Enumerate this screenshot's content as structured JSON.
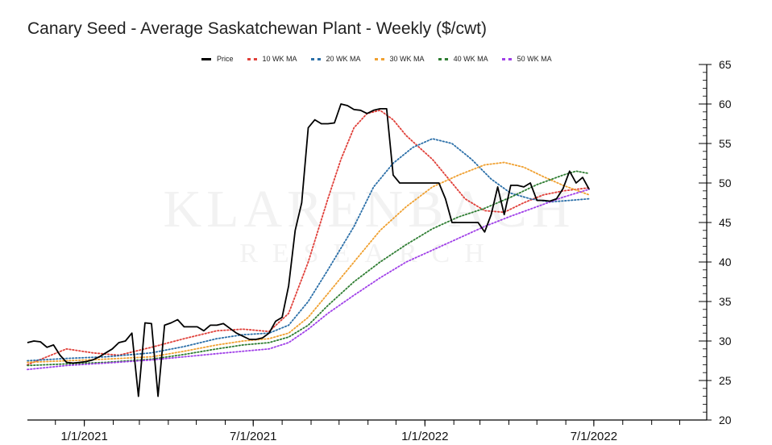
{
  "chart_data": {
    "type": "line",
    "title": "Canary Seed - Average Saskatchewan Plant - Weekly ($/cwt)",
    "watermark": [
      "KLARENBACH",
      "RESEARCH"
    ],
    "y_axis_position": "right",
    "ylim": [
      20,
      65
    ],
    "yticks": [
      20,
      25,
      30,
      35,
      40,
      45,
      50,
      55,
      60,
      65
    ],
    "xlim": [
      "2020-11-01",
      "2022-10-30"
    ],
    "xtick_labels": [
      {
        "label": "1/1/2021",
        "x": "2021-01-01"
      },
      {
        "label": "7/1/2021",
        "x": "2021-07-01"
      },
      {
        "label": "1/1/2022",
        "x": "2022-01-01"
      },
      {
        "label": "7/1/2022",
        "x": "2022-07-01"
      }
    ],
    "grid": false,
    "legend_position": "top",
    "series": [
      {
        "name": "Price",
        "color": "#000000",
        "style": "solid",
        "points": [
          [
            "2020-11-01",
            29.8
          ],
          [
            "2020-11-08",
            30.0
          ],
          [
            "2020-11-15",
            29.9
          ],
          [
            "2020-11-22",
            29.2
          ],
          [
            "2020-11-29",
            29.5
          ],
          [
            "2020-12-06",
            28.2
          ],
          [
            "2020-12-13",
            27.3
          ],
          [
            "2020-12-20",
            27.2
          ],
          [
            "2020-12-27",
            27.3
          ],
          [
            "2021-01-03",
            27.4
          ],
          [
            "2021-01-10",
            27.6
          ],
          [
            "2021-01-17",
            28.0
          ],
          [
            "2021-01-24",
            28.5
          ],
          [
            "2021-01-31",
            29.0
          ],
          [
            "2021-02-07",
            29.8
          ],
          [
            "2021-02-14",
            30.0
          ],
          [
            "2021-02-21",
            31.0
          ],
          [
            "2021-02-28",
            23.0
          ],
          [
            "2021-03-07",
            32.3
          ],
          [
            "2021-03-14",
            32.2
          ],
          [
            "2021-03-21",
            23.0
          ],
          [
            "2021-03-28",
            32.0
          ],
          [
            "2021-04-04",
            32.3
          ],
          [
            "2021-04-11",
            32.7
          ],
          [
            "2021-04-18",
            31.8
          ],
          [
            "2021-04-25",
            31.8
          ],
          [
            "2021-05-02",
            31.8
          ],
          [
            "2021-05-09",
            31.3
          ],
          [
            "2021-05-16",
            32.0
          ],
          [
            "2021-05-23",
            32.0
          ],
          [
            "2021-05-30",
            32.2
          ],
          [
            "2021-06-06",
            31.6
          ],
          [
            "2021-06-13",
            31.0
          ],
          [
            "2021-06-20",
            30.6
          ],
          [
            "2021-06-27",
            30.2
          ],
          [
            "2021-07-04",
            30.2
          ],
          [
            "2021-07-11",
            30.4
          ],
          [
            "2021-07-18",
            31.0
          ],
          [
            "2021-07-25",
            32.5
          ],
          [
            "2021-08-01",
            33.0
          ],
          [
            "2021-08-08",
            37.0
          ],
          [
            "2021-08-15",
            44.0
          ],
          [
            "2021-08-22",
            47.5
          ],
          [
            "2021-08-29",
            57.0
          ],
          [
            "2021-09-05",
            58.0
          ],
          [
            "2021-09-12",
            57.5
          ],
          [
            "2021-09-19",
            57.5
          ],
          [
            "2021-09-26",
            57.6
          ],
          [
            "2021-10-03",
            60.0
          ],
          [
            "2021-10-10",
            59.8
          ],
          [
            "2021-10-17",
            59.3
          ],
          [
            "2021-10-24",
            59.2
          ],
          [
            "2021-10-31",
            58.8
          ],
          [
            "2021-11-07",
            59.2
          ],
          [
            "2021-11-14",
            59.4
          ],
          [
            "2021-11-21",
            59.4
          ],
          [
            "2021-11-28",
            51.0
          ],
          [
            "2021-12-05",
            50.0
          ],
          [
            "2021-12-12",
            50.0
          ],
          [
            "2021-12-19",
            50.0
          ],
          [
            "2021-12-26",
            50.0
          ],
          [
            "2022-01-02",
            50.0
          ],
          [
            "2022-01-09",
            50.0
          ],
          [
            "2022-01-16",
            50.0
          ],
          [
            "2022-01-23",
            48.0
          ],
          [
            "2022-01-30",
            45.0
          ],
          [
            "2022-02-06",
            45.0
          ],
          [
            "2022-02-13",
            45.0
          ],
          [
            "2022-02-20",
            45.0
          ],
          [
            "2022-02-27",
            45.0
          ],
          [
            "2022-03-06",
            43.8
          ],
          [
            "2022-03-13",
            46.0
          ],
          [
            "2022-03-20",
            49.5
          ],
          [
            "2022-03-27",
            46.0
          ],
          [
            "2022-04-03",
            49.7
          ],
          [
            "2022-04-10",
            49.7
          ],
          [
            "2022-04-17",
            49.5
          ],
          [
            "2022-04-24",
            50.0
          ],
          [
            "2022-05-01",
            47.8
          ],
          [
            "2022-05-08",
            47.8
          ],
          [
            "2022-05-15",
            47.7
          ],
          [
            "2022-05-22",
            48.0
          ],
          [
            "2022-05-29",
            49.3
          ],
          [
            "2022-06-05",
            51.5
          ],
          [
            "2022-06-12",
            50.0
          ],
          [
            "2022-06-19",
            50.7
          ],
          [
            "2022-06-26",
            49.2
          ]
        ]
      },
      {
        "name": "10 WK MA",
        "color": "#e0403a",
        "style": "dotted",
        "points": [
          [
            "2020-11-01",
            27.0
          ],
          [
            "2020-12-13",
            29.0
          ],
          [
            "2021-01-10",
            28.5
          ],
          [
            "2021-02-07",
            28.2
          ],
          [
            "2021-03-14",
            29.2
          ],
          [
            "2021-04-18",
            30.3
          ],
          [
            "2021-05-23",
            31.3
          ],
          [
            "2021-06-20",
            31.5
          ],
          [
            "2021-07-18",
            31.2
          ],
          [
            "2021-08-08",
            33.5
          ],
          [
            "2021-08-29",
            40.0
          ],
          [
            "2021-09-19",
            48.0
          ],
          [
            "2021-10-03",
            53.0
          ],
          [
            "2021-10-17",
            57.0
          ],
          [
            "2021-10-31",
            58.8
          ],
          [
            "2021-11-14",
            59.2
          ],
          [
            "2021-11-28",
            58.0
          ],
          [
            "2021-12-12",
            56.0
          ],
          [
            "2021-12-26",
            54.5
          ],
          [
            "2022-01-09",
            53.0
          ],
          [
            "2022-01-23",
            51.0
          ],
          [
            "2022-02-13",
            48.0
          ],
          [
            "2022-03-06",
            46.5
          ],
          [
            "2022-03-27",
            46.3
          ],
          [
            "2022-04-17",
            47.5
          ],
          [
            "2022-05-08",
            48.5
          ],
          [
            "2022-05-29",
            49.0
          ],
          [
            "2022-06-19",
            49.3
          ],
          [
            "2022-06-26",
            49.4
          ]
        ]
      },
      {
        "name": "20 WK MA",
        "color": "#2b6fa8",
        "style": "dotted",
        "points": [
          [
            "2020-11-01",
            27.5
          ],
          [
            "2020-12-13",
            27.8
          ],
          [
            "2021-01-24",
            28.0
          ],
          [
            "2021-03-14",
            28.5
          ],
          [
            "2021-04-18",
            29.3
          ],
          [
            "2021-05-23",
            30.3
          ],
          [
            "2021-06-20",
            30.8
          ],
          [
            "2021-07-18",
            31.0
          ],
          [
            "2021-08-08",
            32.0
          ],
          [
            "2021-08-29",
            35.0
          ],
          [
            "2021-09-19",
            39.0
          ],
          [
            "2021-10-17",
            44.5
          ],
          [
            "2021-11-07",
            49.5
          ],
          [
            "2021-11-28",
            52.5
          ],
          [
            "2021-12-19",
            54.5
          ],
          [
            "2022-01-09",
            55.6
          ],
          [
            "2022-01-30",
            55.0
          ],
          [
            "2022-02-20",
            53.0
          ],
          [
            "2022-03-13",
            50.5
          ],
          [
            "2022-04-03",
            48.7
          ],
          [
            "2022-04-24",
            48.0
          ],
          [
            "2022-05-15",
            47.6
          ],
          [
            "2022-06-05",
            47.8
          ],
          [
            "2022-06-26",
            48.0
          ]
        ]
      },
      {
        "name": "30 WK MA",
        "color": "#f0a030",
        "style": "dotted",
        "points": [
          [
            "2020-11-01",
            27.3
          ],
          [
            "2020-12-13",
            27.5
          ],
          [
            "2021-01-24",
            27.7
          ],
          [
            "2021-03-14",
            28.0
          ],
          [
            "2021-04-18",
            28.7
          ],
          [
            "2021-05-23",
            29.5
          ],
          [
            "2021-06-20",
            30.0
          ],
          [
            "2021-07-18",
            30.3
          ],
          [
            "2021-08-08",
            31.0
          ],
          [
            "2021-08-29",
            33.0
          ],
          [
            "2021-09-19",
            36.0
          ],
          [
            "2021-10-17",
            40.0
          ],
          [
            "2021-11-14",
            44.0
          ],
          [
            "2021-12-12",
            47.0
          ],
          [
            "2022-01-09",
            49.5
          ],
          [
            "2022-02-06",
            51.0
          ],
          [
            "2022-03-06",
            52.3
          ],
          [
            "2022-03-27",
            52.6
          ],
          [
            "2022-04-17",
            52.0
          ],
          [
            "2022-05-08",
            50.8
          ],
          [
            "2022-05-29",
            49.7
          ],
          [
            "2022-06-19",
            48.8
          ],
          [
            "2022-06-26",
            48.5
          ]
        ]
      },
      {
        "name": "40 WK MA",
        "color": "#2e7d32",
        "style": "dotted",
        "points": [
          [
            "2020-11-01",
            26.9
          ],
          [
            "2020-12-13",
            27.1
          ],
          [
            "2021-01-24",
            27.3
          ],
          [
            "2021-03-14",
            27.7
          ],
          [
            "2021-04-18",
            28.3
          ],
          [
            "2021-05-23",
            29.0
          ],
          [
            "2021-06-20",
            29.5
          ],
          [
            "2021-07-18",
            29.8
          ],
          [
            "2021-08-08",
            30.5
          ],
          [
            "2021-08-29",
            32.0
          ],
          [
            "2021-09-19",
            34.5
          ],
          [
            "2021-10-17",
            37.5
          ],
          [
            "2021-11-14",
            40.0
          ],
          [
            "2021-12-12",
            42.2
          ],
          [
            "2022-01-09",
            44.2
          ],
          [
            "2022-02-06",
            45.7
          ],
          [
            "2022-03-06",
            46.8
          ],
          [
            "2022-04-03",
            48.2
          ],
          [
            "2022-05-01",
            49.8
          ],
          [
            "2022-05-29",
            51.0
          ],
          [
            "2022-06-12",
            51.5
          ],
          [
            "2022-06-26",
            51.2
          ]
        ]
      },
      {
        "name": "50 WK MA",
        "color": "#a040e8",
        "style": "dotted",
        "points": [
          [
            "2020-11-01",
            26.4
          ],
          [
            "2020-12-13",
            26.9
          ],
          [
            "2021-01-24",
            27.2
          ],
          [
            "2021-03-14",
            27.6
          ],
          [
            "2021-04-18",
            28.0
          ],
          [
            "2021-05-23",
            28.4
          ],
          [
            "2021-06-20",
            28.7
          ],
          [
            "2021-07-18",
            29.0
          ],
          [
            "2021-08-08",
            29.8
          ],
          [
            "2021-08-29",
            31.5
          ],
          [
            "2021-09-19",
            33.5
          ],
          [
            "2021-10-17",
            35.8
          ],
          [
            "2021-11-14",
            38.0
          ],
          [
            "2021-12-12",
            40.0
          ],
          [
            "2022-01-09",
            41.5
          ],
          [
            "2022-02-06",
            43.0
          ],
          [
            "2022-03-06",
            44.5
          ],
          [
            "2022-04-03",
            45.8
          ],
          [
            "2022-05-01",
            47.0
          ],
          [
            "2022-05-29",
            48.2
          ],
          [
            "2022-06-26",
            49.2
          ]
        ]
      }
    ]
  }
}
